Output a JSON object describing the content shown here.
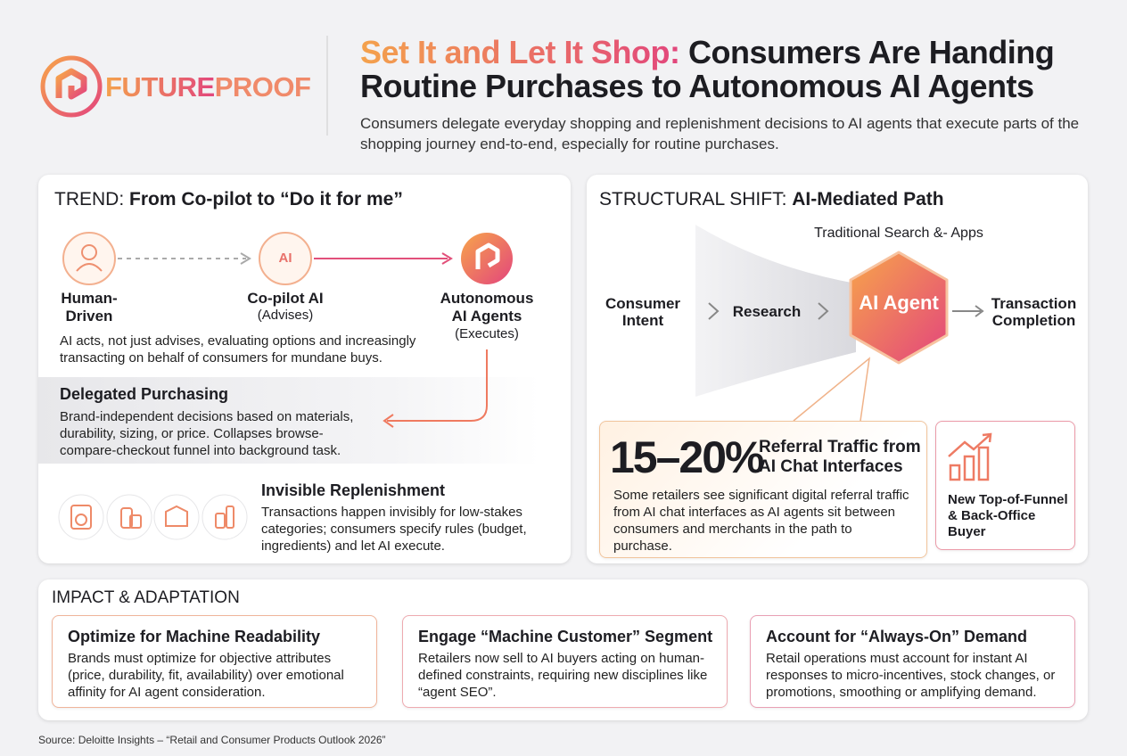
{
  "header": {
    "logo_a": "FUTURE",
    "logo_b": "PROOF",
    "title_highlight": "Set It and Let It Shop:",
    "title_rest": "Consumers Are Handing Routine Purchases to Autonomous AI Agents",
    "subtitle": "Consumers delegate everyday shopping and replenishment decisions to AI agents that execute parts of the shopping journey end-to-end, especially for routine purchases."
  },
  "trend": {
    "label": "TREND:",
    "heading": "From Co-pilot to “Do it for me”",
    "steps": [
      {
        "name": "Human-Driven"
      },
      {
        "name": "Co-pilot AI",
        "note": "(Advises)",
        "icon_text": "AI"
      },
      {
        "name": "Autonomous AI Agents",
        "note": "(Executes)"
      }
    ],
    "description": "AI acts, not just advises, evaluating options and increasingly transacting on behalf of consumers for mundane buys.",
    "delegated": {
      "title": "Delegated Purchasing",
      "text": "Brand-independent decisions based on materials, durability, sizing, or price. Collapses browse-compare-checkout funnel into background task."
    },
    "replenishment": {
      "title": "Invisible Replenishment",
      "text": "Transactions happen invisibly for low-stakes categories; consumers specify rules (budget, ingredients) and let AI execute."
    }
  },
  "shift": {
    "label": "STRUCTURAL SHIFT:",
    "heading": "AI-Mediated Path",
    "funnel_label": "Traditional Search &- Apps",
    "path": [
      "Consumer Intent",
      "Research"
    ],
    "hub": "AI Agent",
    "end": "Transaction Completion",
    "stat": {
      "value": "15–20%",
      "label": "Referral Traffic from AI Chat Interfaces",
      "text": "Some retailers see significant digital referral traffic from AI chat interfaces as AI agents sit between consumers and merchants in the path to purchase."
    },
    "buyer": "New Top-of-Funnel & Back-Office Buyer"
  },
  "impact": {
    "title": "IMPACT & ADAPTATION",
    "cards": [
      {
        "title": "Optimize for Machine Readability",
        "text": "Brands must optimize for objective attributes (price, durability, fit, availability) over emotional affinity for AI agent consideration."
      },
      {
        "title": "Engage “Machine Customer” Segment",
        "text": "Retailers now sell to AI buyers acting on human-defined constraints, requiring new disciplines like “agent SEO”."
      },
      {
        "title": "Account for “Always-On” Demand",
        "text": "Retail operations must account for instant AI responses to micro-incentives, stock changes, or promotions, smoothing or amplifying demand."
      }
    ]
  },
  "source": "Source: Deloitte Insights – “Retail and Consumer Products Outlook 2026”"
}
